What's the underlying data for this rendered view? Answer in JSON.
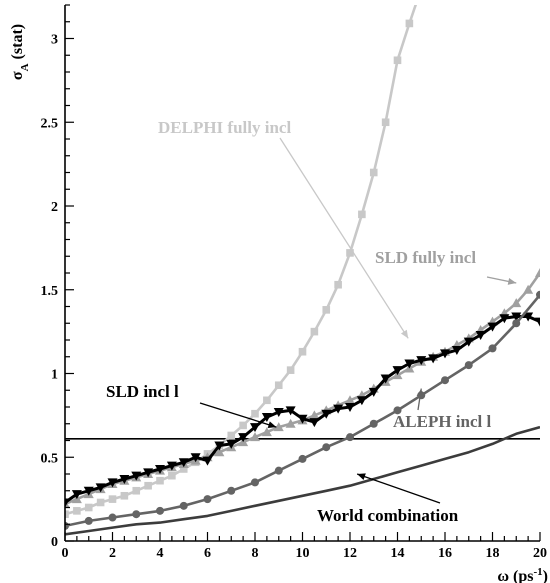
{
  "chart_data": {
    "type": "line",
    "xlabel": "ω (ps",
    "xlabel_sup": "-1",
    "xlabel_close": ")",
    "ylabel": "σ",
    "ylabel_sub": "A",
    "ylabel_suffix": " (stat)",
    "xlim": [
      0,
      20
    ],
    "ylim": [
      0,
      3.2
    ],
    "x_ticks": [
      0,
      2,
      4,
      6,
      8,
      10,
      12,
      14,
      16,
      18,
      20
    ],
    "y_ticks": [
      0,
      0.5,
      1,
      1.5,
      2,
      2.5,
      3
    ],
    "y_tick_labels": [
      "0",
      "0.5",
      "1",
      "1.5",
      "2",
      "2.5",
      "3"
    ],
    "reference_line": {
      "y": 0.61
    },
    "series": [
      {
        "name": "DELPHI fully incl",
        "color": "#c8c8c8",
        "marker": "square",
        "x": [
          0,
          0.5,
          1,
          1.5,
          2,
          2.5,
          3,
          3.5,
          4,
          4.5,
          5,
          5.5,
          6,
          6.5,
          7,
          7.5,
          8,
          8.5,
          9,
          9.5,
          10,
          10.5,
          11,
          11.5,
          12,
          12.5,
          13,
          13.5,
          14,
          14.5,
          15
        ],
        "y": [
          0.16,
          0.18,
          0.2,
          0.23,
          0.25,
          0.27,
          0.3,
          0.33,
          0.36,
          0.39,
          0.43,
          0.47,
          0.52,
          0.57,
          0.63,
          0.69,
          0.76,
          0.84,
          0.93,
          1.02,
          1.13,
          1.25,
          1.38,
          1.53,
          1.72,
          1.95,
          2.2,
          2.5,
          2.87,
          3.09,
          3.3
        ]
      },
      {
        "name": "SLD fully incl",
        "color": "#a0a0a0",
        "marker": "triangle-up",
        "x": [
          0,
          0.5,
          1,
          1.5,
          2,
          2.5,
          3,
          3.5,
          4,
          4.5,
          5,
          5.5,
          6,
          6.5,
          7,
          7.5,
          8,
          8.5,
          9,
          9.5,
          10,
          10.5,
          11,
          11.5,
          12,
          12.5,
          13,
          13.5,
          14,
          14.5,
          15,
          15.5,
          16,
          16.5,
          17,
          17.5,
          18,
          18.5,
          19,
          19.5,
          20
        ],
        "y": [
          0.22,
          0.25,
          0.28,
          0.31,
          0.34,
          0.36,
          0.38,
          0.4,
          0.42,
          0.44,
          0.46,
          0.48,
          0.5,
          0.53,
          0.56,
          0.59,
          0.62,
          0.65,
          0.68,
          0.7,
          0.72,
          0.75,
          0.78,
          0.81,
          0.84,
          0.87,
          0.91,
          0.95,
          0.99,
          1.03,
          1.07,
          1.1,
          1.13,
          1.17,
          1.21,
          1.26,
          1.31,
          1.36,
          1.42,
          1.5,
          1.6
        ]
      },
      {
        "name": "SLD incl l",
        "color": "#000000",
        "marker": "triangle-down",
        "x": [
          0,
          0.5,
          1,
          1.5,
          2,
          2.5,
          3,
          3.5,
          4,
          4.5,
          5,
          5.5,
          6,
          6.5,
          7,
          7.5,
          8,
          8.5,
          9,
          9.5,
          10,
          10.5,
          11,
          11.5,
          12,
          12.5,
          13,
          13.5,
          14,
          14.5,
          15,
          15.5,
          16,
          16.5,
          17,
          17.5,
          18,
          18.5,
          19,
          19.5,
          20
        ],
        "y": [
          0.23,
          0.28,
          0.3,
          0.32,
          0.35,
          0.37,
          0.39,
          0.41,
          0.43,
          0.45,
          0.47,
          0.5,
          0.48,
          0.57,
          0.58,
          0.62,
          0.68,
          0.74,
          0.77,
          0.78,
          0.73,
          0.71,
          0.76,
          0.79,
          0.8,
          0.84,
          0.89,
          0.97,
          1.02,
          1.06,
          1.08,
          1.09,
          1.12,
          1.14,
          1.19,
          1.23,
          1.28,
          1.33,
          1.34,
          1.34,
          1.31
        ]
      },
      {
        "name": "ALEPH incl l",
        "color": "#646464",
        "marker": "circle",
        "x": [
          0,
          1,
          2,
          3,
          4,
          5,
          6,
          7,
          8,
          9,
          10,
          11,
          12,
          13,
          14,
          15,
          16,
          17,
          18,
          19,
          20
        ],
        "y": [
          0.09,
          0.12,
          0.14,
          0.16,
          0.18,
          0.21,
          0.25,
          0.3,
          0.35,
          0.42,
          0.49,
          0.56,
          0.62,
          0.7,
          0.78,
          0.87,
          0.96,
          1.05,
          1.15,
          1.3,
          1.47
        ]
      },
      {
        "name": "World combination",
        "color": "#3c3c3c",
        "marker": "none",
        "x": [
          0,
          1,
          2,
          3,
          4,
          5,
          6,
          7,
          8,
          9,
          10,
          11,
          12,
          13,
          14,
          15,
          16,
          17,
          18,
          19,
          20
        ],
        "y": [
          0.04,
          0.06,
          0.08,
          0.1,
          0.11,
          0.13,
          0.15,
          0.18,
          0.21,
          0.24,
          0.27,
          0.3,
          0.33,
          0.37,
          0.41,
          0.45,
          0.49,
          0.53,
          0.58,
          0.64,
          0.68
        ]
      }
    ],
    "annotations": [
      {
        "text": "DELPHI fully incl",
        "color": "#c8c8c8",
        "arrow_to": [
          14.45,
          1.21
        ]
      },
      {
        "text": "SLD fully incl",
        "color": "#a0a0a0",
        "arrow_to": [
          19.0,
          1.54
        ]
      },
      {
        "text": "SLD incl l",
        "color": "#000000",
        "arrow_to": [
          8.9,
          0.68
        ]
      },
      {
        "text": "ALEPH incl l",
        "color": "#646464",
        "arrow_to": [
          15.0,
          0.91
        ]
      },
      {
        "text": "World combination",
        "color": "#000000",
        "arrow_to": [
          12.3,
          0.4
        ]
      }
    ]
  }
}
